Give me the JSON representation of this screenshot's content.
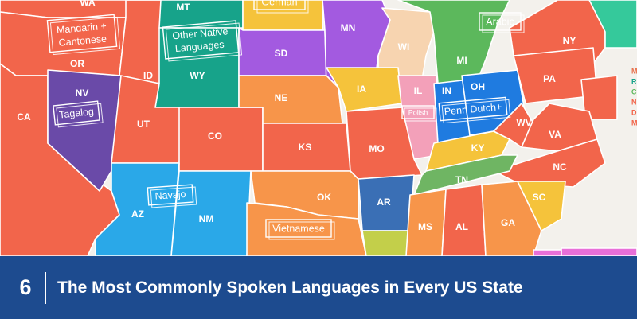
{
  "caption": {
    "number": "6",
    "title": "The Most Commonly Spoken Languages in Every US State"
  },
  "colors": {
    "background": "#f3f1ec",
    "caption_bar": "#1d4b8f",
    "english_red": "#f2654b",
    "english_orange": "#f7954a",
    "yellow": "#f5c33b",
    "teal": "#17a38a",
    "purple": "#6a4aa8",
    "violet": "#a35ae0",
    "blue": "#2aa8e8",
    "green": "#5cb85c",
    "pink": "#f3a0b9",
    "peach": "#f7d4b0"
  },
  "states": [
    {
      "abbr": "WA"
    },
    {
      "abbr": "MT"
    },
    {
      "abbr": "OR"
    },
    {
      "abbr": "ID"
    },
    {
      "abbr": "WY"
    },
    {
      "abbr": "MN"
    },
    {
      "abbr": "SD"
    },
    {
      "abbr": "WI"
    },
    {
      "abbr": "MI"
    },
    {
      "abbr": "NY"
    },
    {
      "abbr": "NV"
    },
    {
      "abbr": "NE"
    },
    {
      "abbr": "IA"
    },
    {
      "abbr": "IL"
    },
    {
      "abbr": "IN"
    },
    {
      "abbr": "OH"
    },
    {
      "abbr": "PA"
    },
    {
      "abbr": "CA"
    },
    {
      "abbr": "UT"
    },
    {
      "abbr": "CO"
    },
    {
      "abbr": "KS"
    },
    {
      "abbr": "MO"
    },
    {
      "abbr": "KY"
    },
    {
      "abbr": "WV"
    },
    {
      "abbr": "VA"
    },
    {
      "abbr": "NC"
    },
    {
      "abbr": "TN"
    },
    {
      "abbr": "OK"
    },
    {
      "abbr": "AR"
    },
    {
      "abbr": "AZ"
    },
    {
      "abbr": "NM"
    },
    {
      "abbr": "SC"
    },
    {
      "abbr": "MS"
    },
    {
      "abbr": "AL"
    },
    {
      "abbr": "GA"
    }
  ],
  "languages": {
    "wa_or": "Mandarin + Cantonese",
    "wa_or_line1": "Mandarin +",
    "wa_or_line2": "Cantonese",
    "wy": "Other Native Languages",
    "wy_line1": "Other Native",
    "wy_line2": "Languages",
    "nd": "German",
    "mi": "Arabic",
    "nv": "Tagalog",
    "il": "Polish",
    "pa_oh": "Penn Dutch+",
    "nm_az": "Navajo",
    "tx": "Vietnamese"
  },
  "edge_letters": [
    "M",
    "R",
    "C",
    "N",
    "D",
    "M"
  ]
}
